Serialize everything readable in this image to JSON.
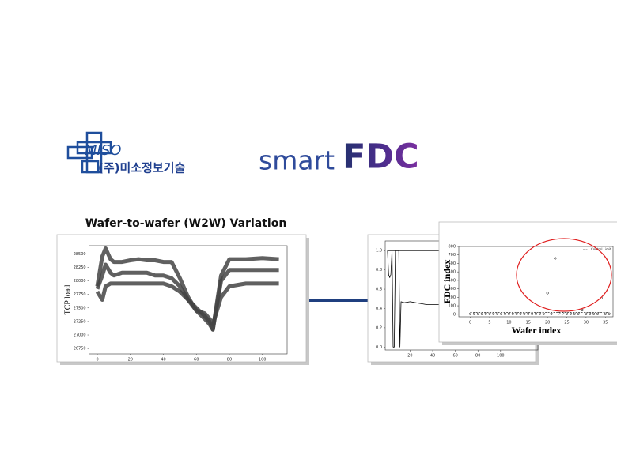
{
  "logos": {
    "company_mark": "MISO",
    "company_name": "(주)미소정보기술",
    "product_prefix": "smart",
    "product_suffix": "FDC"
  },
  "chart_data": [
    {
      "type": "line",
      "title": "Wafer-to-wafer (W2W) Variation",
      "y_label": "TCP load",
      "x": [
        0,
        3,
        5,
        8,
        10,
        15,
        20,
        25,
        30,
        35,
        40,
        45,
        50,
        55,
        60,
        65,
        68,
        70,
        75,
        80,
        90,
        100,
        110
      ],
      "series": [
        {
          "color": "#444444",
          "values": [
            27900,
            28450,
            28600,
            28400,
            28350,
            28350,
            28380,
            28400,
            28380,
            28380,
            28350,
            28350,
            28050,
            27700,
            27450,
            27300,
            27200,
            27100,
            28100,
            28400,
            28400,
            28420,
            28400
          ]
        },
        {
          "color": "#444444",
          "values": [
            27850,
            28100,
            28300,
            28150,
            28100,
            28150,
            28150,
            28150,
            28150,
            28100,
            28100,
            28050,
            27900,
            27650,
            27500,
            27350,
            27250,
            27100,
            28000,
            28200,
            28200,
            28200,
            28200
          ]
        },
        {
          "color": "#444444",
          "values": [
            27800,
            27650,
            27900,
            27950,
            27950,
            27950,
            27950,
            27950,
            27950,
            27950,
            27950,
            27900,
            27800,
            27650,
            27450,
            27400,
            27300,
            27200,
            27700,
            27900,
            27950,
            27950,
            27950
          ]
        }
      ],
      "xlim": [
        -5,
        115
      ],
      "xticks": [
        0,
        20,
        40,
        60,
        80,
        100
      ],
      "ylim": [
        26650,
        28650
      ],
      "yticks": [
        26750,
        27000,
        27250,
        27500,
        27750,
        28000,
        28250,
        28500
      ]
    },
    {
      "type": "line",
      "series": [
        {
          "color": "#000000",
          "x": [
            0,
            50
          ],
          "values": [
            1,
            1
          ]
        },
        {
          "color": "#000000",
          "x": [
            0,
            1,
            2,
            3,
            4,
            5,
            6,
            7,
            8,
            9,
            10,
            11,
            12,
            15,
            20,
            25,
            30,
            35,
            40,
            45,
            50
          ],
          "values": [
            1,
            0.75,
            0.72,
            0.75,
            1,
            0,
            0,
            1,
            1,
            1,
            1,
            0,
            0.47,
            0.46,
            0.47,
            0.46,
            0.45,
            0.44,
            0.44,
            0.44,
            0.44
          ]
        }
      ],
      "xlim": [
        -2,
        133
      ],
      "xticks": [
        20,
        40,
        60,
        80,
        100
      ],
      "ylim": [
        -0.03,
        1.1
      ],
      "yticks": [
        {
          "value": 0,
          "label": "0.0"
        },
        0.2,
        0.4,
        0.6,
        0.8,
        {
          "value": 1,
          "label": "1.0"
        }
      ]
    },
    {
      "type": "scatter",
      "x_label": "Wafer index",
      "y_label": "FDC index",
      "legend": "upper right",
      "x": [
        0,
        1,
        2,
        3,
        4,
        5,
        6,
        7,
        8,
        9,
        10,
        11,
        12,
        13,
        14,
        15,
        16,
        17,
        18,
        19,
        20,
        21,
        22,
        23,
        24,
        25,
        26,
        27,
        28,
        29,
        30,
        31,
        32,
        33,
        34,
        35,
        36
      ],
      "series": [
        {
          "color": "#000000",
          "values": [
            5,
            5,
            5,
            5,
            5,
            5,
            5,
            5,
            5,
            5,
            5,
            5,
            5,
            5,
            5,
            5,
            5,
            5,
            5,
            5,
            250,
            5,
            660,
            10,
            10,
            5,
            5,
            5,
            5,
            50,
            5,
            5,
            5,
            5,
            190,
            5,
            5
          ]
        },
        {
          "name": "Control Limit",
          "color": "#000000",
          "style": "dashed",
          "values": [
            20,
            20,
            20,
            20,
            20,
            20,
            20,
            20,
            20,
            20,
            20,
            20,
            20,
            20,
            20,
            20,
            20,
            20,
            20,
            20,
            20,
            20,
            20,
            20,
            20,
            20,
            20,
            20,
            20,
            20,
            20,
            20,
            20,
            20,
            20,
            20,
            20
          ]
        }
      ],
      "xlim": [
        -3,
        37
      ],
      "xticks": [
        0,
        5,
        10,
        15,
        20,
        25,
        30,
        35
      ],
      "ylim": [
        -30,
        800
      ],
      "yticks": [
        0,
        100,
        200,
        300,
        400,
        500,
        600,
        700,
        800
      ]
    }
  ]
}
